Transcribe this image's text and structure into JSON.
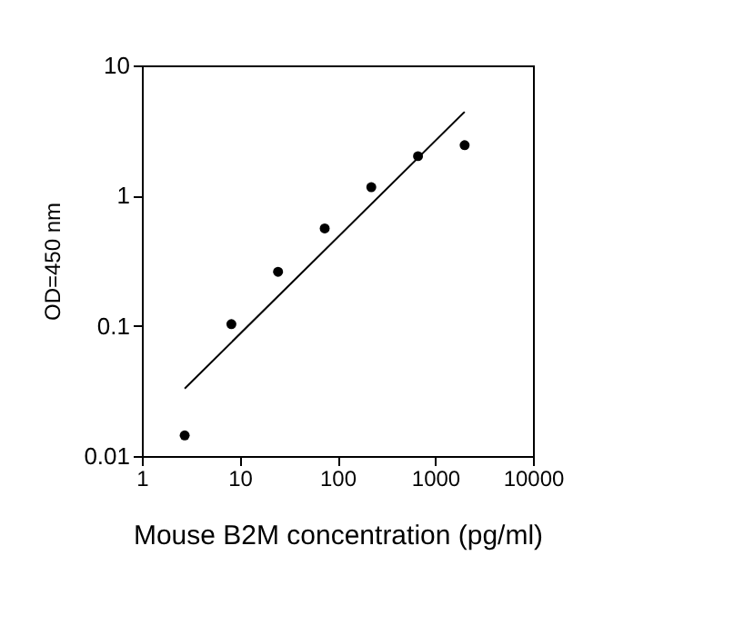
{
  "chart_data": {
    "type": "scatter",
    "xlabel": "Mouse B2M concentration (pg/ml)",
    "ylabel": "OD=450 nm",
    "log": "xy",
    "xlim": [
      1,
      10000
    ],
    "xticks": [
      1,
      10,
      100,
      1000,
      10000
    ],
    "ylim": [
      0.01,
      10
    ],
    "yticks": [
      0.01,
      0.1,
      1,
      10
    ],
    "grid": false,
    "series": [
      {
        "color": "#000000",
        "marker": "circle",
        "x": [
          2.74,
          8.23,
          24.7,
          74.1,
          222,
          667,
          2000
        ],
        "values": [
          0.0144,
          0.103,
          0.26,
          0.56,
          1.16,
          2.01,
          2.44
        ]
      },
      {
        "type": "line",
        "color": "#000000",
        "line_style": "solid",
        "x": [
          2.74,
          2000
        ],
        "values": [
          0.033,
          4.4
        ]
      }
    ]
  }
}
